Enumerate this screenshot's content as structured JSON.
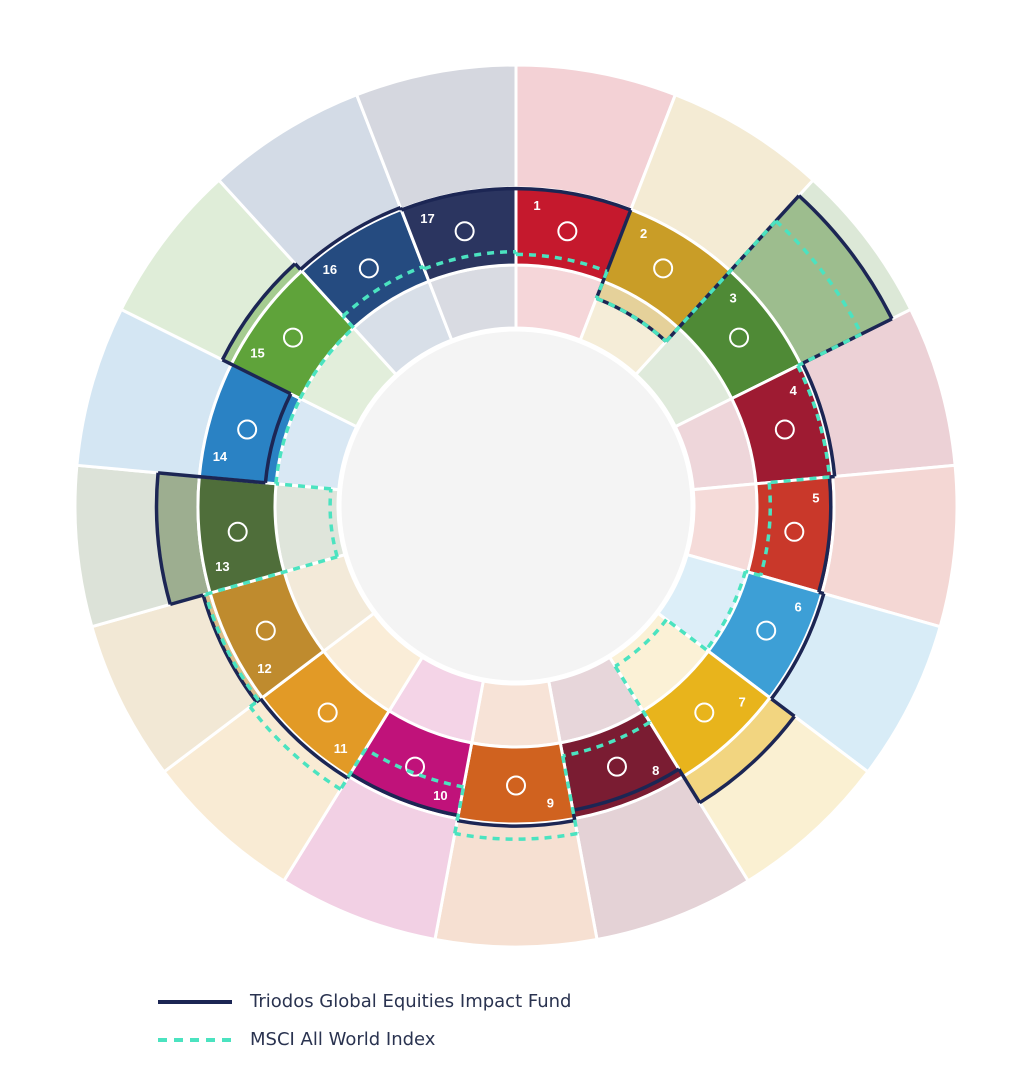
{
  "chart_data": {
    "type": "radial",
    "categories": [
      "1",
      "2",
      "3",
      "4",
      "5",
      "6",
      "7",
      "8",
      "9",
      "10",
      "11",
      "12",
      "13",
      "14",
      "15",
      "16",
      "17"
    ],
    "colors": [
      "#c5192d",
      "#c99d27",
      "#4f8a36",
      "#9e1b32",
      "#c9382a",
      "#3d9fd6",
      "#e8b41c",
      "#7a1c32",
      "#d0621f",
      "#c0127a",
      "#e29a26",
      "#bf8b2e",
      "#4f6e3a",
      "#2a82c4",
      "#5fa33a",
      "#254b80",
      "#2b3560"
    ],
    "rlim": [
      0,
      100
    ],
    "series": [
      {
        "name": "Triodos Global Equities Impact Fund",
        "color": "#1c2654",
        "style": "solid",
        "values": [
          53,
          17,
          92,
          54,
          52,
          54,
          65,
          50,
          54,
          52,
          54,
          56,
          69,
          28,
          57,
          54,
          53
        ]
      },
      {
        "name": "MSCI All World Index",
        "color": "#4be3c0",
        "style": "dashed",
        "values": [
          28,
          17,
          79,
          52,
          29,
          23,
          4,
          29,
          59,
          41,
          59,
          55,
          3,
          24,
          24,
          30,
          29
        ]
      }
    ]
  }
}
